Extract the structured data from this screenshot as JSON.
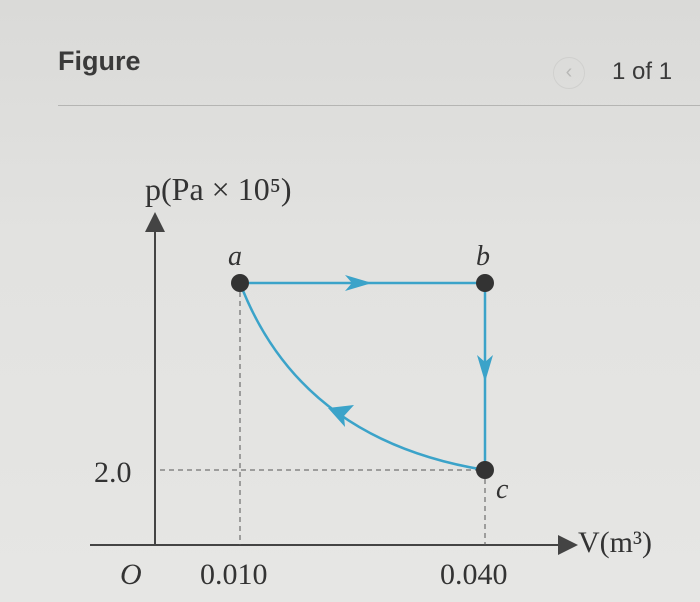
{
  "header": {
    "title": "Figure",
    "prev_icon": "chevron-left-icon",
    "pager": "1 of 1"
  },
  "diagram": {
    "y_axis_label": "p(Pa × 10⁵)",
    "x_axis_label": "V(m³)",
    "origin": "O",
    "y_tick": "2.0",
    "x_ticks": [
      "0.010",
      "0.040"
    ],
    "points": {
      "a": "a",
      "b": "b",
      "c": "c"
    },
    "line_color": "#3ba3c9"
  }
}
